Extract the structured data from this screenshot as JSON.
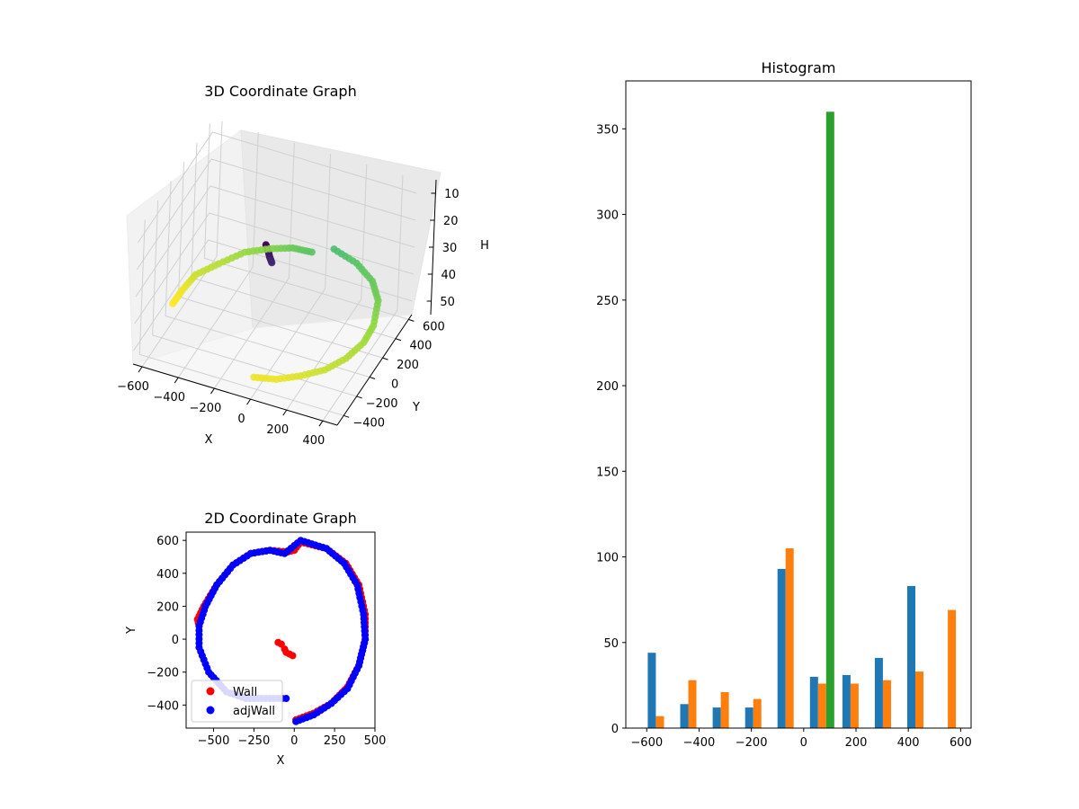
{
  "chart_data": [
    {
      "type": "scatter3d",
      "title": "3D Coordinate Graph",
      "xlabel": "X",
      "ylabel": "Y",
      "zlabel": "H",
      "xticks": [
        "−600",
        "−400",
        "−200",
        "0",
        "200",
        "400"
      ],
      "yticks": [
        "−400",
        "−200",
        "0",
        "200",
        "400",
        "600"
      ],
      "zticks": [
        "10",
        "20",
        "30",
        "40",
        "50"
      ],
      "xlim": [
        -650,
        480
      ],
      "ylim": [
        -500,
        650
      ],
      "zlim": [
        5,
        55
      ],
      "z_inverted": true,
      "colormap": [
        "#440154",
        "#3b528b",
        "#21918c",
        "#35b779",
        "#90d743",
        "#fde725"
      ],
      "points": [
        {
          "x": -110,
          "y": -20,
          "z": 17
        },
        {
          "x": -90,
          "y": -40,
          "z": 18
        },
        {
          "x": -70,
          "y": -70,
          "z": 19
        },
        {
          "x": -50,
          "y": -90,
          "z": 20
        },
        {
          "x": 10,
          "y": -490,
          "z": 47
        },
        {
          "x": 120,
          "y": -450,
          "z": 47
        },
        {
          "x": 230,
          "y": -380,
          "z": 46
        },
        {
          "x": 330,
          "y": -290,
          "z": 45
        },
        {
          "x": 400,
          "y": -160,
          "z": 44
        },
        {
          "x": 440,
          "y": 0,
          "z": 43
        },
        {
          "x": 440,
          "y": 150,
          "z": 42
        },
        {
          "x": 400,
          "y": 330,
          "z": 40
        },
        {
          "x": 320,
          "y": 460,
          "z": 39
        },
        {
          "x": 200,
          "y": 550,
          "z": 38
        },
        {
          "x": 60,
          "y": 590,
          "z": 37
        },
        {
          "x": -40,
          "y": 530,
          "z": 38
        },
        {
          "x": -150,
          "y": 540,
          "z": 39
        },
        {
          "x": -270,
          "y": 520,
          "z": 41
        },
        {
          "x": -380,
          "y": 450,
          "z": 42
        },
        {
          "x": -480,
          "y": 330,
          "z": 44
        },
        {
          "x": -560,
          "y": 200,
          "z": 45
        },
        {
          "x": -590,
          "y": 80,
          "z": 47
        },
        {
          "x": -600,
          "y": -40,
          "z": 48
        }
      ]
    },
    {
      "type": "scatter",
      "title": "2D Coordinate Graph",
      "xlabel": "X",
      "ylabel": "Y",
      "xlim": [
        -670,
        500
      ],
      "ylim": [
        -540,
        650
      ],
      "xticks": [
        "−500",
        "−250",
        "0",
        "250",
        "500"
      ],
      "yticks": [
        "−400",
        "−200",
        "0",
        "200",
        "400",
        "600"
      ],
      "legend_position": "lower-left",
      "series": [
        {
          "name": "Wall",
          "color": "#ff0000",
          "points": [
            [
              -100,
              -20
            ],
            [
              -80,
              -30
            ],
            [
              -60,
              -60
            ],
            [
              -50,
              -80
            ],
            [
              -30,
              -90
            ],
            [
              -10,
              -100
            ],
            [
              10,
              -490
            ],
            [
              120,
              -450
            ],
            [
              230,
              -390
            ],
            [
              330,
              -290
            ],
            [
              400,
              -160
            ],
            [
              440,
              0
            ],
            [
              440,
              150
            ],
            [
              400,
              330
            ],
            [
              320,
              460
            ],
            [
              200,
              550
            ],
            [
              40,
              590
            ],
            [
              0,
              540
            ],
            [
              -40,
              530
            ],
            [
              -150,
              540
            ],
            [
              -270,
              520
            ],
            [
              -380,
              450
            ],
            [
              -480,
              330
            ],
            [
              -560,
              200
            ],
            [
              -600,
              120
            ],
            [
              -590,
              80
            ]
          ]
        },
        {
          "name": "adjWall",
          "color": "#0000ff",
          "points": [
            [
              10,
              -500
            ],
            [
              120,
              -460
            ],
            [
              230,
              -390
            ],
            [
              330,
              -300
            ],
            [
              400,
              -160
            ],
            [
              440,
              0
            ],
            [
              430,
              150
            ],
            [
              390,
              330
            ],
            [
              310,
              460
            ],
            [
              200,
              550
            ],
            [
              40,
              600
            ],
            [
              -60,
              520
            ],
            [
              -150,
              540
            ],
            [
              -270,
              520
            ],
            [
              -380,
              450
            ],
            [
              -480,
              330
            ],
            [
              -550,
              200
            ],
            [
              -590,
              80
            ],
            [
              -590,
              -50
            ],
            [
              -530,
              -200
            ],
            [
              -420,
              -320
            ],
            [
              -300,
              -360
            ],
            [
              -200,
              -360
            ],
            [
              -50,
              -360
            ]
          ]
        }
      ]
    },
    {
      "type": "bar",
      "title": "Histogram",
      "xlim": [
        -680,
        640
      ],
      "ylim": [
        0,
        378
      ],
      "xticks": [
        "−600",
        "−400",
        "−200",
        "0",
        "200",
        "400",
        "600"
      ],
      "yticks": [
        "0",
        "50",
        "100",
        "150",
        "200",
        "250",
        "300",
        "350"
      ],
      "bar_width": 31,
      "series": [
        {
          "color": "#1f77b4",
          "bars": [
            {
              "x": -596,
              "value": 44
            },
            {
              "x": -472,
              "value": 14
            },
            {
              "x": -348,
              "value": 12
            },
            {
              "x": -224,
              "value": 12
            },
            {
              "x": -100,
              "value": 93
            },
            {
              "x": 24,
              "value": 30
            },
            {
              "x": 148,
              "value": 31
            },
            {
              "x": 272,
              "value": 41
            },
            {
              "x": 396,
              "value": 83
            }
          ]
        },
        {
          "color": "#ff7f0e",
          "bars": [
            {
              "x": -565,
              "value": 7
            },
            {
              "x": -441,
              "value": 28
            },
            {
              "x": -317,
              "value": 21
            },
            {
              "x": -193,
              "value": 17
            },
            {
              "x": -69,
              "value": 105
            },
            {
              "x": 55,
              "value": 26
            },
            {
              "x": 179,
              "value": 26
            },
            {
              "x": 303,
              "value": 28
            },
            {
              "x": 427,
              "value": 33
            },
            {
              "x": 551,
              "value": 69
            }
          ]
        },
        {
          "color": "#2ca02c",
          "bars": [
            {
              "x": 86,
              "value": 360
            }
          ]
        }
      ]
    }
  ]
}
